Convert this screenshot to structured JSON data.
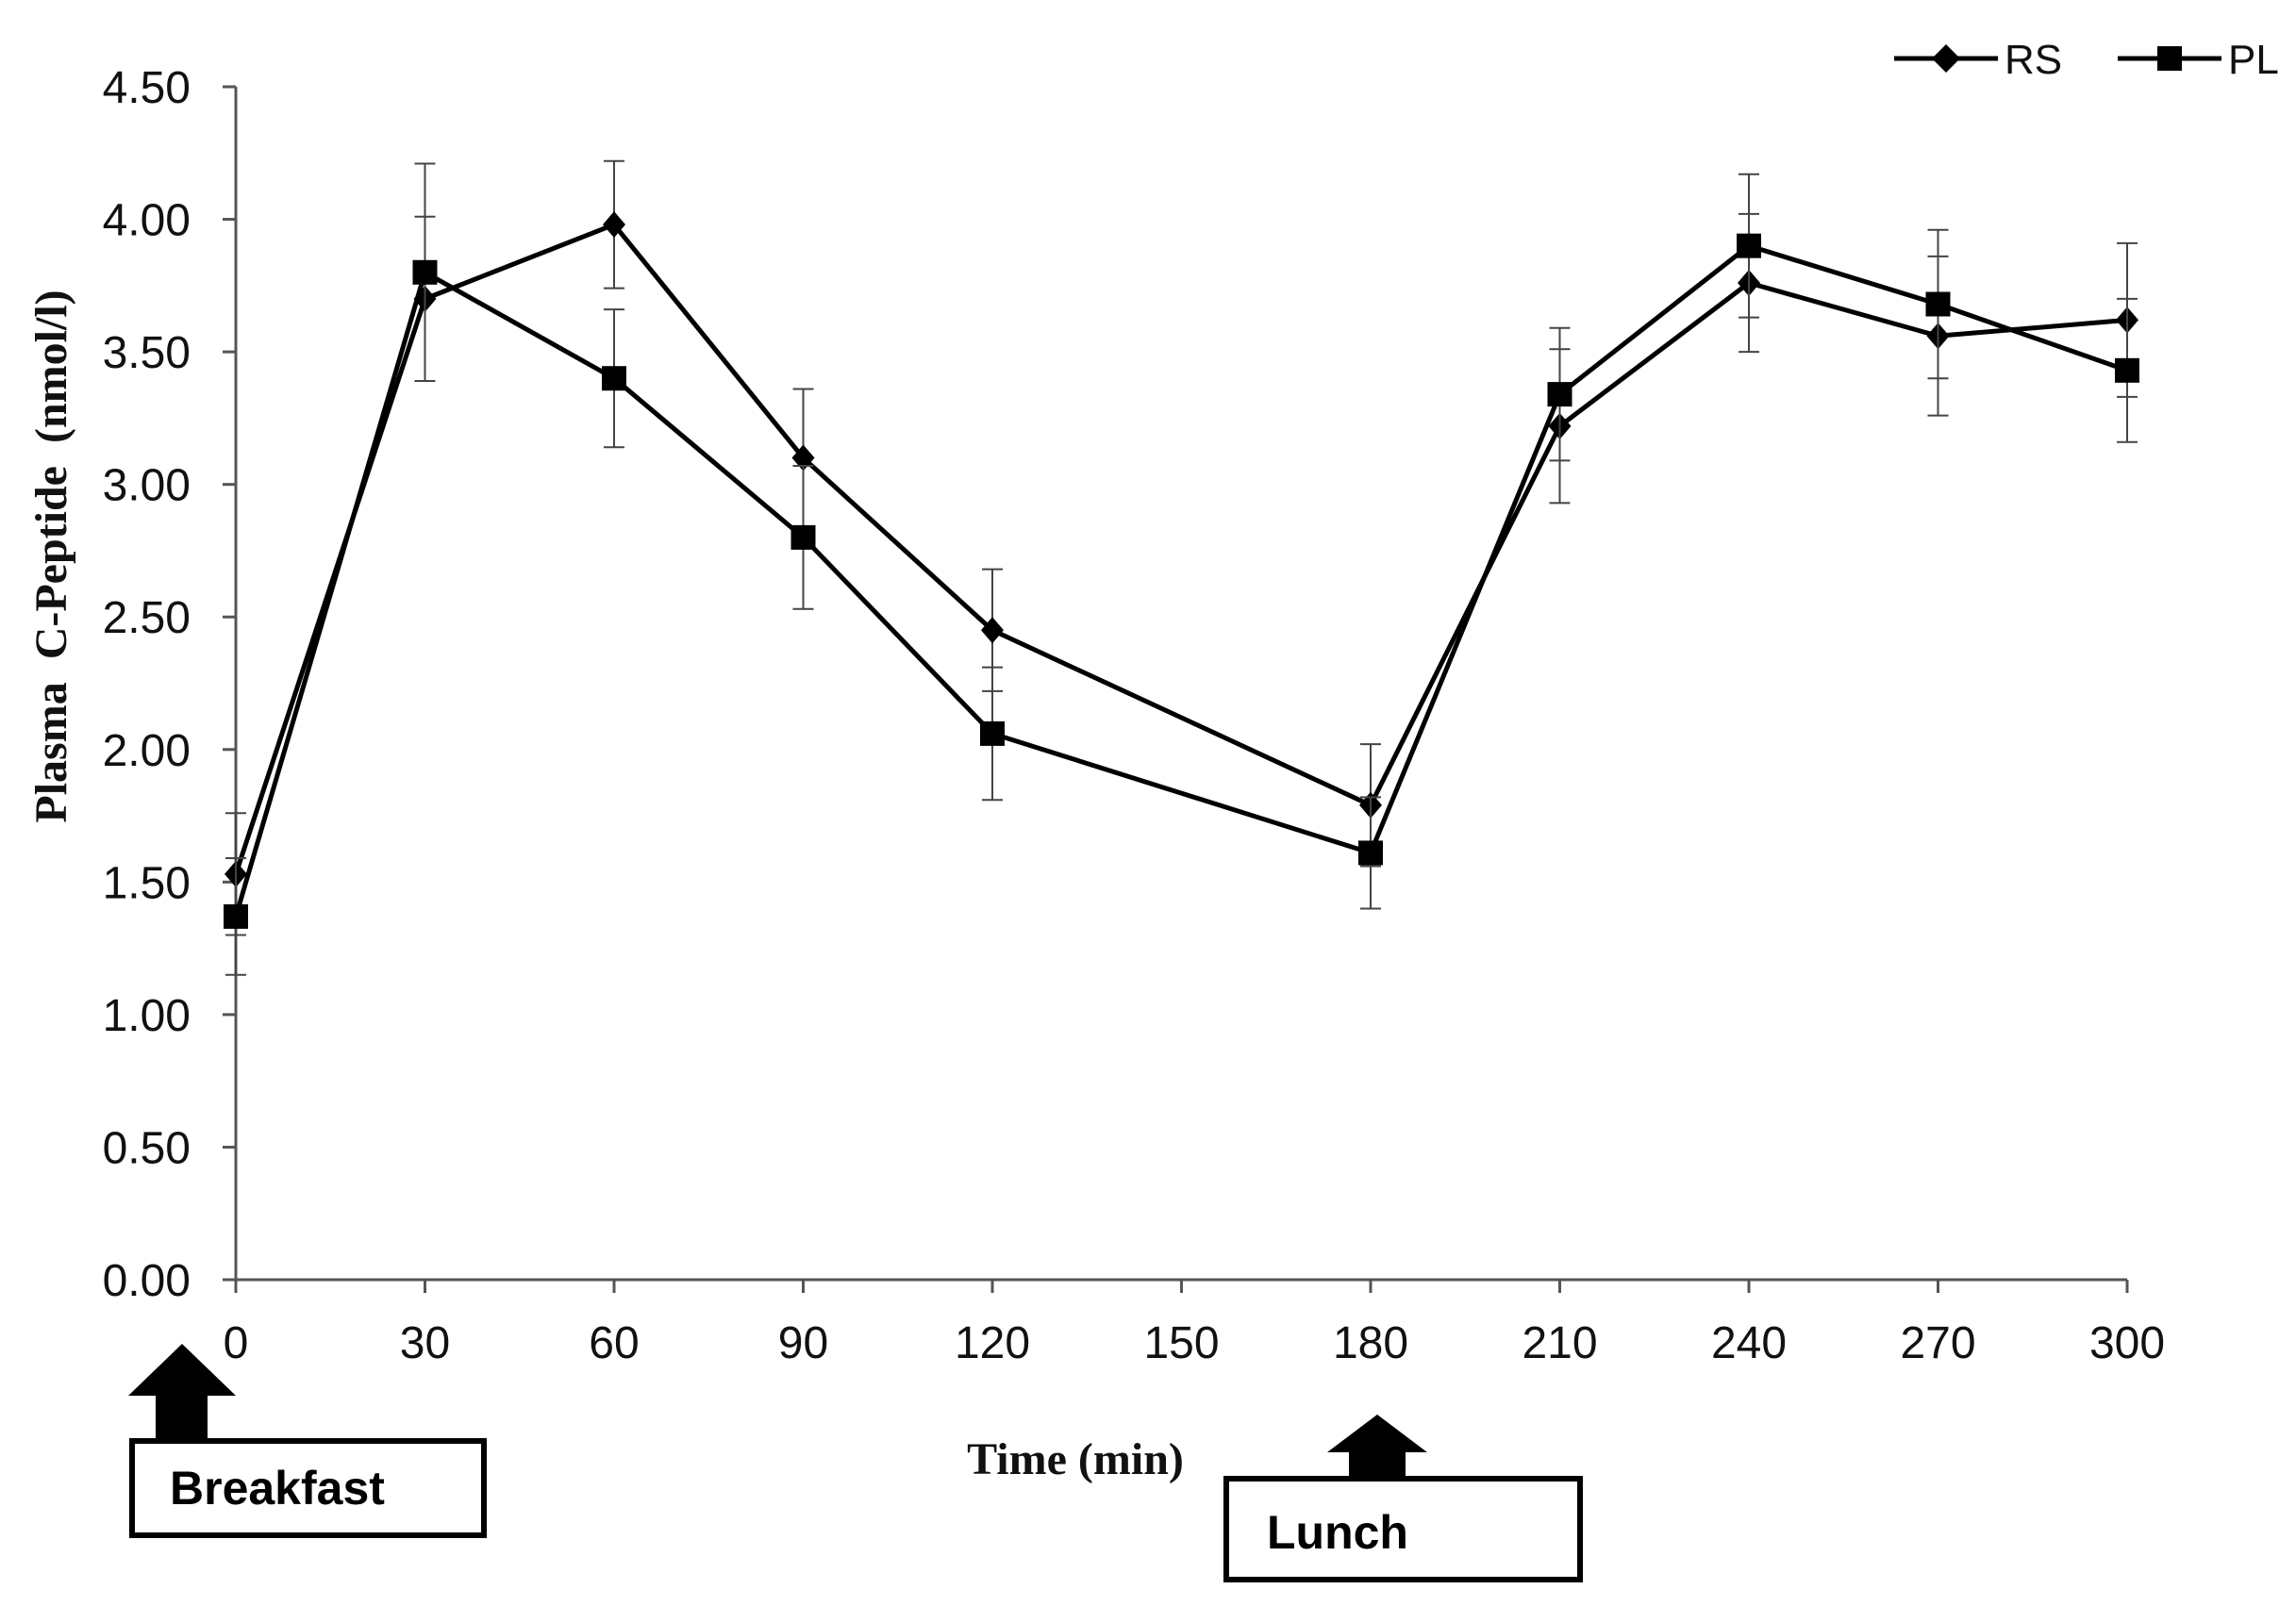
{
  "chart_data": {
    "type": "line",
    "title": "",
    "xlabel": "Time (min)",
    "ylabel": "Plasma  C-Peptide  (nmol/l)",
    "x": [
      0,
      30,
      60,
      90,
      120,
      150,
      180,
      210,
      240,
      270,
      300
    ],
    "x_tick_labels": [
      "0",
      "30",
      "60",
      "90",
      "120",
      "150",
      "180",
      "210",
      "240",
      "270",
      "300"
    ],
    "xlim": [
      0,
      300
    ],
    "ylim": [
      0,
      4.5
    ],
    "y_ticks": [
      0,
      0.5,
      1,
      1.5,
      2,
      2.5,
      3,
      3.5,
      4,
      4.5
    ],
    "y_tick_labels": [
      "0.00",
      "0.50",
      "1.00",
      "1.50",
      "2.00",
      "2.50",
      "3.00",
      "3.50",
      "4.00",
      "4.50"
    ],
    "grid": false,
    "legend_position": "top-right",
    "series": [
      {
        "name": "RS",
        "marker": "diamond",
        "x": [
          0,
          30,
          60,
          90,
          120,
          180,
          210,
          240,
          270,
          300
        ],
        "values": [
          1.53,
          3.7,
          3.98,
          3.1,
          2.45,
          1.79,
          3.22,
          3.76,
          3.56,
          3.62
        ],
        "errors": [
          0.23,
          0.31,
          0.24,
          0.26,
          0.23,
          0.23,
          0.29,
          0.26,
          0.3,
          0.29
        ]
      },
      {
        "name": "PL",
        "marker": "square",
        "x": [
          0,
          30,
          60,
          90,
          120,
          180,
          210,
          240,
          270,
          300
        ],
        "values": [
          1.37,
          3.8,
          3.4,
          2.8,
          2.06,
          1.61,
          3.34,
          3.9,
          3.68,
          3.43
        ],
        "errors": [
          0.22,
          0.41,
          0.26,
          0.27,
          0.25,
          0.21,
          0.25,
          0.27,
          0.28,
          0.27
        ]
      }
    ],
    "annotations": [
      {
        "text": "Breakfast",
        "at_x": 0
      },
      {
        "text": "Lunch",
        "at_x": 180
      }
    ]
  }
}
